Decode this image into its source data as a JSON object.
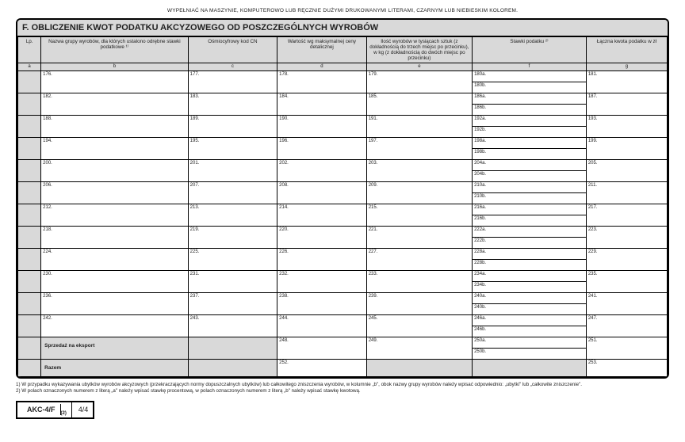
{
  "top_note": "WYPEŁNIAĆ NA MASZYNIE, KOMPUTEROWO LUB RĘCZNIE DUŻYMI DRUKOWANYMI LITERAMI, CZARNYM LUB NIEBIESKIM KOLOREM.",
  "section_title": "F. OBLICZENIE KWOT PODATKU AKCYZOWEGO OD POSZCZEGÓLNYCH WYROBÓW",
  "headers": {
    "lp": "Lp.",
    "b": "Nazwa grupy wyrobów, dla których ustalono odrębne stawki podatkowe ¹⁾",
    "c": "Ośmiocyfrowy kod CN",
    "d": "Wartość wg maksymalnej ceny detalicznej",
    "e": "Ilość wyrobów w tysiącach sztuk (z dokładnością do trzech miejsc po przecinku), w kg (z dokładnością do dwóch miejsc po przecinku)",
    "f": "Stawki podatku ²⁾",
    "g": "Łączna kwota podatku w zł"
  },
  "letters": {
    "a": "a",
    "b": "b",
    "c": "c",
    "d": "d",
    "e": "e",
    "f": "f",
    "g": "g"
  },
  "rows": [
    {
      "b": "176.",
      "c": "177.",
      "d": "178.",
      "e": "179.",
      "fa": "180a.",
      "fb": "180b.",
      "g": "181."
    },
    {
      "b": "182.",
      "c": "183.",
      "d": "184.",
      "e": "185.",
      "fa": "186a.",
      "fb": "186b.",
      "g": "187."
    },
    {
      "b": "188.",
      "c": "189.",
      "d": "190.",
      "e": "191.",
      "fa": "192a.",
      "fb": "192b.",
      "g": "193."
    },
    {
      "b": "194.",
      "c": "195.",
      "d": "196.",
      "e": "197.",
      "fa": "198a.",
      "fb": "198b.",
      "g": "199."
    },
    {
      "b": "200.",
      "c": "201.",
      "d": "202.",
      "e": "203.",
      "fa": "204a.",
      "fb": "204b.",
      "g": "205."
    },
    {
      "b": "206.",
      "c": "207.",
      "d": "208.",
      "e": "209.",
      "fa": "210a.",
      "fb": "210b.",
      "g": "211."
    },
    {
      "b": "212.",
      "c": "213.",
      "d": "214.",
      "e": "215.",
      "fa": "216a.",
      "fb": "216b.",
      "g": "217."
    },
    {
      "b": "218.",
      "c": "219.",
      "d": "220.",
      "e": "221.",
      "fa": "222a.",
      "fb": "222b.",
      "g": "223."
    },
    {
      "b": "224.",
      "c": "225.",
      "d": "226.",
      "e": "227.",
      "fa": "228a.",
      "fb": "228b.",
      "g": "229."
    },
    {
      "b": "230.",
      "c": "231.",
      "d": "232.",
      "e": "233.",
      "fa": "234a.",
      "fb": "234b.",
      "g": "235."
    },
    {
      "b": "236.",
      "c": "237.",
      "d": "238.",
      "e": "239.",
      "fa": "240a.",
      "fb": "240b.",
      "g": "241."
    },
    {
      "b": "242.",
      "c": "243.",
      "d": "244.",
      "e": "245.",
      "fa": "246a.",
      "fb": "246b.",
      "g": "247."
    }
  ],
  "export_row": {
    "label": "Sprzedaż na eksport",
    "d": "248.",
    "e": "249.",
    "fa": "250a.",
    "fb": "250b.",
    "g": "251."
  },
  "razem_row": {
    "label": "Razem",
    "d": "252.",
    "g": "253."
  },
  "footnote1": "1) W przypadku wykazywania ubytków wyrobów akcyzowych (przekraczających normy dopuszczalnych ubytków) lub całkowitego zniszczenia wyrobów, w kolumnie „b\", obok nazwy grupy wyrobów należy wpisać odpowiednio: „ubytki\" lub „całkowite zniszczenie\".",
  "footnote2": "2) W polach oznaczonych numerem z literą „a\" należy wpisać stawkę procentową, w polach oznaczonych numerem z literą „b\" należy wpisać stawkę kwotową.",
  "form_id": "AKC-4/F",
  "form_id_sub": "(2)",
  "page": "4/4"
}
